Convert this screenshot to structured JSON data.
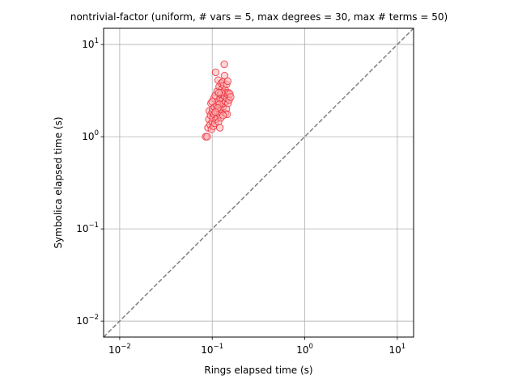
{
  "chart_data": {
    "type": "scatter",
    "title": "nontrivial-factor (uniform, # vars = 5, max degrees = 30, max # terms = 50)",
    "xlabel": "Rings elapsed time (s)",
    "ylabel": "Symbolica elapsed time (s)",
    "xscale": "log",
    "yscale": "log",
    "xlim": [
      0.0067,
      15
    ],
    "ylim": [
      0.0067,
      15
    ],
    "x_ticks": [
      {
        "value": 0.01,
        "base": "10",
        "exp": "−2"
      },
      {
        "value": 0.1,
        "base": "10",
        "exp": "−1"
      },
      {
        "value": 1,
        "base": "10",
        "exp": "0"
      },
      {
        "value": 10,
        "base": "10",
        "exp": "1"
      }
    ],
    "y_ticks": [
      {
        "value": 0.01,
        "base": "10",
        "exp": "−2"
      },
      {
        "value": 0.1,
        "base": "10",
        "exp": "−1"
      },
      {
        "value": 1,
        "base": "10",
        "exp": "0"
      },
      {
        "value": 10,
        "base": "10",
        "exp": "1"
      }
    ],
    "grid": true,
    "reference_line": {
      "style": "dashed",
      "color": "#808080",
      "relation": "y = x"
    },
    "marker": {
      "face_color": "#ffb3b8",
      "edge_color": "#e8202a",
      "alpha": 0.55
    },
    "points": [
      [
        0.085,
        1.0
      ],
      [
        0.088,
        1.0
      ],
      [
        0.09,
        1.25
      ],
      [
        0.092,
        1.55
      ],
      [
        0.093,
        1.9
      ],
      [
        0.095,
        1.35
      ],
      [
        0.096,
        1.7
      ],
      [
        0.097,
        2.3
      ],
      [
        0.098,
        1.2
      ],
      [
        0.1,
        1.45
      ],
      [
        0.1,
        1.85
      ],
      [
        0.101,
        2.0
      ],
      [
        0.102,
        1.6
      ],
      [
        0.103,
        1.3
      ],
      [
        0.104,
        2.6
      ],
      [
        0.105,
        1.75
      ],
      [
        0.106,
        2.1
      ],
      [
        0.107,
        1.4
      ],
      [
        0.108,
        2.8
      ],
      [
        0.109,
        5.0
      ],
      [
        0.11,
        1.55
      ],
      [
        0.111,
        2.2
      ],
      [
        0.112,
        1.9
      ],
      [
        0.113,
        3.1
      ],
      [
        0.114,
        1.6
      ],
      [
        0.115,
        2.4
      ],
      [
        0.116,
        4.1
      ],
      [
        0.117,
        1.45
      ],
      [
        0.118,
        2.0
      ],
      [
        0.119,
        3.5
      ],
      [
        0.12,
        1.75
      ],
      [
        0.121,
        1.25
      ],
      [
        0.122,
        2.6
      ],
      [
        0.123,
        2.9
      ],
      [
        0.124,
        1.6
      ],
      [
        0.125,
        3.8
      ],
      [
        0.126,
        2.2
      ],
      [
        0.127,
        1.95
      ],
      [
        0.128,
        3.3
      ],
      [
        0.129,
        2.5
      ],
      [
        0.13,
        3.9
      ],
      [
        0.131,
        2.1
      ],
      [
        0.132,
        2.8
      ],
      [
        0.133,
        3.6
      ],
      [
        0.134,
        2.3
      ],
      [
        0.135,
        6.1
      ],
      [
        0.136,
        4.6
      ],
      [
        0.137,
        2.7
      ],
      [
        0.138,
        3.2
      ],
      [
        0.139,
        1.8
      ],
      [
        0.14,
        2.4
      ],
      [
        0.141,
        3.0
      ],
      [
        0.142,
        2.0
      ],
      [
        0.143,
        3.7
      ],
      [
        0.144,
        2.6
      ],
      [
        0.145,
        1.75
      ],
      [
        0.146,
        2.9
      ],
      [
        0.147,
        4.0
      ],
      [
        0.148,
        2.3
      ],
      [
        0.15,
        3.0
      ],
      [
        0.152,
        2.5
      ],
      [
        0.155,
        2.9
      ],
      [
        0.158,
        2.7
      ],
      [
        0.12,
        2.25
      ],
      [
        0.126,
        3.0
      ],
      [
        0.131,
        1.7
      ],
      [
        0.115,
        2.05
      ],
      [
        0.1,
        2.4
      ],
      [
        0.108,
        1.85
      ],
      [
        0.118,
        3.0
      ]
    ]
  }
}
